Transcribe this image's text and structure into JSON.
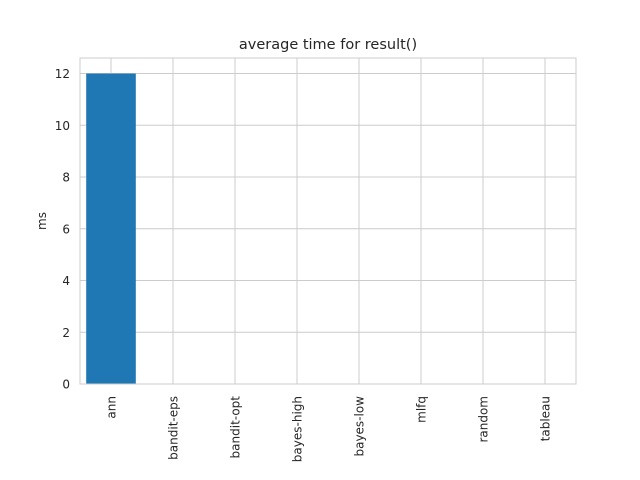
{
  "chart_data": {
    "type": "bar",
    "title": "average time for result()",
    "xlabel": "",
    "ylabel": "ms",
    "categories": [
      "ann",
      "bandit-eps",
      "bandit-opt",
      "bayes-high",
      "bayes-low",
      "mlfq",
      "random",
      "tableau"
    ],
    "values": [
      12,
      0,
      0,
      0,
      0,
      0,
      0,
      0
    ],
    "ylim": [
      0,
      12.6
    ],
    "yticks": [
      0,
      2,
      4,
      6,
      8,
      10,
      12
    ],
    "grid": true,
    "bar_color": "#1f77b4",
    "grid_color": "#cccccc",
    "spine_color": "#cccccc"
  }
}
